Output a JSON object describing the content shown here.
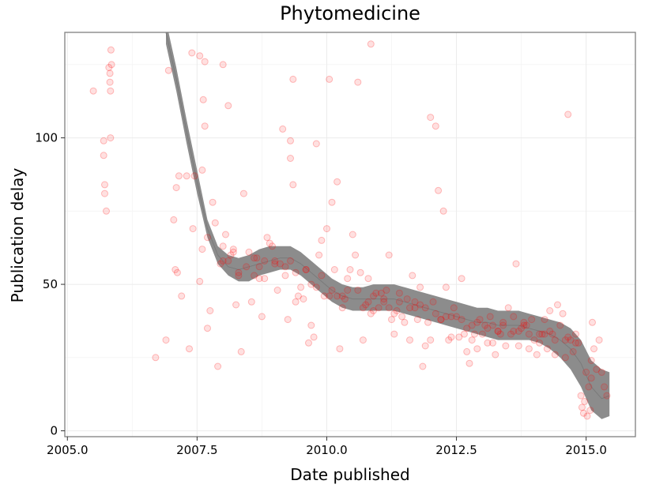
{
  "chart_data": {
    "type": "scatter",
    "title": "Phytomedicine",
    "xlabel": "Date published",
    "ylabel": "Publication delay",
    "xlim": [
      2004.95,
      2015.95
    ],
    "ylim": [
      -2,
      136
    ],
    "x_ticks": [
      2005.0,
      2007.5,
      2010.0,
      2012.5,
      2015.0
    ],
    "x_tick_labels": [
      "2005.0",
      "2007.5",
      "2010.0",
      "2012.5",
      "2015.0"
    ],
    "y_ticks": [
      0,
      50,
      100
    ],
    "y_tick_labels": [
      "0",
      "50",
      "100"
    ],
    "grid": true,
    "point_color": "#ff0000",
    "smooth_color": "#8c8c8c",
    "series": [
      {
        "x": [
          2005.5,
          2005.7,
          2005.7,
          2005.72,
          2005.72,
          2005.75,
          2005.8,
          2005.82,
          2005.82,
          2005.83,
          2005.83,
          2005.84,
          2005.85,
          2006.7,
          2006.9,
          2006.95,
          2007.05,
          2007.08,
          2007.1,
          2007.12,
          2007.15,
          2007.2,
          2007.3,
          2007.35,
          2007.4,
          2007.42,
          2007.45,
          2007.55,
          2007.6,
          2007.62,
          2007.65,
          2007.7,
          2007.75,
          2007.8,
          2007.85,
          2007.9,
          2007.95,
          2008.0,
          2008.05,
          2008.1,
          2008.15,
          2008.2,
          2008.25,
          2008.3,
          2008.35,
          2008.4,
          2008.45,
          2008.5,
          2008.55,
          2008.6,
          2008.65,
          2008.7,
          2008.75,
          2008.8,
          2008.85,
          2008.9,
          2008.95,
          2009.0,
          2009.05,
          2009.1,
          2009.15,
          2009.2,
          2009.25,
          2009.3,
          2009.35,
          2009.4,
          2009.45,
          2009.5,
          2009.55,
          2009.6,
          2009.65,
          2009.7,
          2009.75,
          2009.8,
          2009.85,
          2009.9,
          2009.95,
          2010.0,
          2010.05,
          2010.1,
          2010.15,
          2010.2,
          2010.25,
          2010.3,
          2010.35,
          2010.4,
          2010.45,
          2010.5,
          2010.55,
          2010.6,
          2010.65,
          2010.7,
          2010.75,
          2010.8,
          2010.85,
          2010.9,
          2010.95,
          2011.0,
          2011.05,
          2011.1,
          2011.15,
          2011.2,
          2011.25,
          2011.3,
          2011.35,
          2011.4,
          2011.45,
          2011.5,
          2011.55,
          2011.6,
          2011.65,
          2011.7,
          2011.75,
          2011.8,
          2011.85,
          2011.9,
          2011.95,
          2012.0,
          2012.05,
          2012.1,
          2012.15,
          2012.2,
          2012.25,
          2012.3,
          2012.35,
          2012.4,
          2012.45,
          2012.5,
          2012.55,
          2012.6,
          2012.65,
          2012.7,
          2012.75,
          2012.8,
          2012.85,
          2012.9,
          2012.95,
          2013.0,
          2013.05,
          2013.1,
          2013.15,
          2013.2,
          2013.25,
          2013.3,
          2013.35,
          2013.4,
          2013.45,
          2013.5,
          2013.55,
          2013.6,
          2013.65,
          2013.7,
          2013.75,
          2013.8,
          2013.85,
          2013.9,
          2013.95,
          2014.0,
          2014.05,
          2014.1,
          2014.15,
          2014.2,
          2014.25,
          2014.3,
          2014.35,
          2014.4,
          2014.45,
          2014.5,
          2014.55,
          2014.6,
          2014.65,
          2014.7,
          2014.75,
          2014.8,
          2014.85,
          2014.9,
          2014.92,
          2014.95,
          2014.97,
          2015.0,
          2015.02,
          2015.05,
          2015.08,
          2015.1,
          2015.12,
          2015.15,
          2015.2,
          2015.25,
          2015.3,
          2015.35,
          2015.4,
          2008.1,
          2008.6,
          2009.3,
          2009.8,
          2010.3,
          2010.7,
          2011.3,
          2011.8,
          2012.3,
          2012.8,
          2013.3,
          2013.8,
          2014.3,
          2014.8,
          2008.3,
          2008.8,
          2009.6,
          2010.1,
          2010.6,
          2011.1,
          2011.6,
          2012.1,
          2012.6,
          2013.1,
          2013.6,
          2014.1,
          2014.6,
          2015.1,
          2007.7,
          2008.0,
          2009.0,
          2009.4,
          2009.9,
          2010.4,
          2010.9,
          2011.4,
          2011.9,
          2012.4,
          2012.9,
          2013.4,
          2013.9,
          2014.4,
          2007.6,
          2008.2,
          2008.7,
          2009.2,
          2009.7,
          2010.2,
          2010.8,
          2011.2,
          2011.7,
          2012.2,
          2012.7,
          2013.2,
          2013.7,
          2014.2,
          2007.55,
          2007.65,
          2009.35,
          2010.05,
          2010.85,
          2012.0,
          2014.65,
          2009.3,
          2008.0
        ],
        "y": [
          116,
          99,
          94,
          84,
          81,
          75,
          124,
          122,
          119,
          116,
          100,
          130,
          125,
          25,
          31,
          123,
          72,
          55,
          83,
          54,
          87,
          46,
          87,
          28,
          129,
          69,
          87,
          51,
          89,
          113,
          104,
          35,
          41,
          78,
          71,
          22,
          57,
          58,
          67,
          111,
          60,
          62,
          43,
          53,
          27,
          81,
          56,
          61,
          44,
          59,
          59,
          52,
          39,
          58,
          66,
          64,
          63,
          58,
          48,
          57,
          103,
          53,
          38,
          93,
          84,
          44,
          46,
          49,
          45,
          55,
          30,
          36,
          32,
          98,
          60,
          65,
          46,
          69,
          46,
          78,
          55,
          85,
          28,
          42,
          45,
          52,
          55,
          67,
          60,
          119,
          54,
          31,
          43,
          52,
          40,
          41,
          47,
          42,
          47,
          45,
          48,
          60,
          38,
          33,
          41,
          47,
          39,
          37,
          45,
          31,
          53,
          44,
          38,
          49,
          22,
          29,
          37,
          31,
          44,
          104,
          82,
          38,
          75,
          49,
          31,
          32,
          42,
          39,
          32,
          52,
          33,
          27,
          23,
          31,
          33,
          28,
          38,
          33,
          36,
          30,
          39,
          30,
          26,
          34,
          33,
          37,
          29,
          42,
          33,
          39,
          57,
          29,
          35,
          37,
          36,
          28,
          38,
          31,
          26,
          30,
          33,
          38,
          28,
          41,
          33,
          26,
          43,
          36,
          40,
          25,
          32,
          31,
          27,
          33,
          30,
          12,
          8,
          6,
          10,
          20,
          5,
          15,
          7,
          24,
          37,
          28,
          21,
          31,
          20,
          15,
          12,
          58,
          53,
          58,
          49,
          46,
          42,
          40,
          43,
          39,
          36,
          34,
          36,
          34,
          30,
          54,
          52,
          55,
          48,
          48,
          44,
          42,
          40,
          38,
          35,
          34,
          33,
          31,
          18,
          66,
          63,
          57,
          54,
          53,
          48,
          46,
          44,
          42,
          39,
          37,
          36,
          33,
          31,
          62,
          61,
          56,
          56,
          50,
          46,
          44,
          42,
          42,
          38,
          35,
          36,
          34,
          33,
          128,
          126,
          120,
          120,
          132,
          107,
          108,
          99,
          125
        ]
      }
    ],
    "smooth": {
      "x": [
        2006.9,
        2007.1,
        2007.3,
        2007.5,
        2007.7,
        2007.9,
        2008.1,
        2008.3,
        2008.5,
        2008.7,
        2008.9,
        2009.1,
        2009.3,
        2009.5,
        2009.7,
        2009.9,
        2010.1,
        2010.3,
        2010.5,
        2010.7,
        2010.9,
        2011.1,
        2011.3,
        2011.5,
        2011.7,
        2011.9,
        2012.1,
        2012.3,
        2012.5,
        2012.7,
        2012.9,
        2013.1,
        2013.3,
        2013.5,
        2013.7,
        2013.9,
        2014.1,
        2014.3,
        2014.5,
        2014.7,
        2014.9,
        2015.1,
        2015.3,
        2015.45
      ],
      "fit": [
        136,
        120,
        102,
        85,
        69,
        60,
        56,
        55,
        56,
        57,
        58,
        59,
        59,
        57,
        54,
        51,
        48,
        46,
        45,
        45,
        45,
        45,
        45,
        44,
        43,
        42,
        41,
        40,
        39,
        38,
        37,
        37,
        36,
        36,
        36,
        35,
        34,
        33,
        31,
        28,
        23,
        15,
        11,
        12
      ],
      "lower": [
        132,
        116,
        98,
        81,
        66,
        57,
        53,
        51,
        51,
        53,
        54,
        55,
        55,
        53,
        50,
        47,
        44,
        42,
        41,
        41,
        41,
        41,
        41,
        40,
        39,
        38,
        37,
        36,
        35,
        34,
        33,
        32,
        31,
        31,
        31,
        31,
        30,
        28,
        25,
        21,
        15,
        7,
        4,
        5
      ],
      "upper": [
        140,
        124,
        106,
        89,
        72,
        63,
        60,
        59,
        60,
        62,
        63,
        63,
        63,
        61,
        58,
        55,
        52,
        50,
        49,
        49,
        50,
        50,
        50,
        49,
        48,
        47,
        46,
        45,
        44,
        43,
        42,
        42,
        41,
        41,
        41,
        40,
        39,
        38,
        37,
        35,
        31,
        24,
        21,
        20
      ]
    }
  }
}
